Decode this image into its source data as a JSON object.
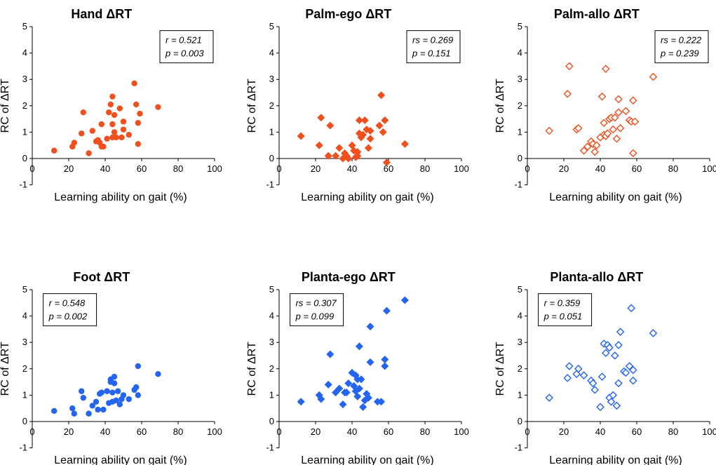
{
  "figure": {
    "xlabel": "Learning ability on gait (%)",
    "ylabel": "RC of ΔRT",
    "x_ticks": [
      0,
      20,
      40,
      60,
      80,
      100
    ],
    "y_ticks": [
      -1,
      0,
      1,
      2,
      3,
      4,
      5
    ]
  },
  "chart_data": [
    {
      "type": "scatter",
      "title": "Hand ΔRT",
      "color": "#f0501e",
      "marker": "circle",
      "stat_r": "r = 0.521",
      "stat_p": "p = 0.003",
      "stat_place": "top-right",
      "xlim": [
        0,
        100
      ],
      "ylim": [
        -1,
        5
      ],
      "points": [
        [
          12,
          0.3
        ],
        [
          22,
          0.45
        ],
        [
          23,
          0.6
        ],
        [
          27,
          0.95
        ],
        [
          28,
          1.75
        ],
        [
          31,
          0.2
        ],
        [
          33,
          1.05
        ],
        [
          35,
          0.65
        ],
        [
          36,
          0.7
        ],
        [
          37,
          0.6
        ],
        [
          38,
          0.45
        ],
        [
          38,
          1.3
        ],
        [
          39,
          0.45
        ],
        [
          41,
          0.75
        ],
        [
          42,
          1.75
        ],
        [
          43,
          2.05
        ],
        [
          44,
          2.35
        ],
        [
          44,
          0.8
        ],
        [
          44,
          1.3
        ],
        [
          45,
          1.65
        ],
        [
          45,
          1.0
        ],
        [
          46,
          0.8
        ],
        [
          48,
          1.9
        ],
        [
          49,
          0.8
        ],
        [
          50,
          1.4
        ],
        [
          50,
          1.1
        ],
        [
          53,
          0.9
        ],
        [
          56,
          2.85
        ],
        [
          57,
          2.05
        ],
        [
          58,
          1.35
        ],
        [
          58,
          0.55
        ],
        [
          59,
          1.7
        ],
        [
          69,
          1.95
        ]
      ]
    },
    {
      "type": "scatter",
      "title": "Palm-ego ΔRT",
      "color": "#f0501e",
      "marker": "diamond",
      "stat_r": "rs = 0.269",
      "stat_p": "p = 0.151",
      "stat_place": "top-right",
      "xlim": [
        0,
        100
      ],
      "ylim": [
        -1,
        5
      ],
      "points": [
        [
          12,
          0.85
        ],
        [
          22,
          0.5
        ],
        [
          23,
          1.55
        ],
        [
          27,
          0.1
        ],
        [
          28,
          1.25
        ],
        [
          31,
          0.1
        ],
        [
          33,
          0.4
        ],
        [
          35,
          0.0
        ],
        [
          36,
          0.2
        ],
        [
          37,
          0.1
        ],
        [
          38,
          0.0
        ],
        [
          40,
          0.5
        ],
        [
          41,
          0.3
        ],
        [
          42,
          0.05
        ],
        [
          43,
          0.1
        ],
        [
          43,
          0.25
        ],
        [
          44,
          1.45
        ],
        [
          44,
          0.95
        ],
        [
          45,
          0.8
        ],
        [
          46,
          0.9
        ],
        [
          47,
          1.45
        ],
        [
          48,
          1.1
        ],
        [
          49,
          0.4
        ],
        [
          50,
          0.75
        ],
        [
          50,
          1.05
        ],
        [
          55,
          1.25
        ],
        [
          56,
          2.4
        ],
        [
          57,
          1.0
        ],
        [
          58,
          1.45
        ],
        [
          59,
          -0.15
        ],
        [
          69,
          0.55
        ]
      ]
    },
    {
      "type": "scatter",
      "title": "Palm-allo ΔRT",
      "color": "#f0501e",
      "marker": "diamond-open",
      "stat_r": "rs = 0.222",
      "stat_p": "p = 0.239",
      "stat_place": "top-right",
      "xlim": [
        0,
        100
      ],
      "ylim": [
        -1,
        5
      ],
      "points": [
        [
          12,
          1.05
        ],
        [
          22,
          2.45
        ],
        [
          23,
          3.5
        ],
        [
          27,
          1.1
        ],
        [
          28,
          1.15
        ],
        [
          31,
          0.3
        ],
        [
          33,
          0.45
        ],
        [
          35,
          0.65
        ],
        [
          36,
          0.55
        ],
        [
          37,
          0.25
        ],
        [
          38,
          0.5
        ],
        [
          40,
          0.8
        ],
        [
          41,
          2.35
        ],
        [
          42,
          1.35
        ],
        [
          42,
          0.9
        ],
        [
          43,
          3.4
        ],
        [
          43,
          0.85
        ],
        [
          44,
          0.95
        ],
        [
          45,
          1.5
        ],
        [
          46,
          1.55
        ],
        [
          47,
          1.1
        ],
        [
          48,
          1.55
        ],
        [
          49,
          0.75
        ],
        [
          50,
          2.25
        ],
        [
          50,
          1.75
        ],
        [
          51,
          1.15
        ],
        [
          54,
          1.8
        ],
        [
          56,
          1.45
        ],
        [
          57,
          1.4
        ],
        [
          58,
          2.2
        ],
        [
          58,
          0.2
        ],
        [
          59,
          1.4
        ],
        [
          69,
          3.1
        ]
      ]
    },
    {
      "type": "scatter",
      "title": "Foot ΔRT",
      "color": "#2364f0",
      "marker": "circle",
      "stat_r": "r = 0.548",
      "stat_p": "p = 0.002",
      "stat_place": "top-left",
      "xlim": [
        0,
        100
      ],
      "ylim": [
        -1,
        5
      ],
      "points": [
        [
          12,
          0.4
        ],
        [
          22,
          0.5
        ],
        [
          23,
          0.3
        ],
        [
          27,
          1.15
        ],
        [
          28,
          0.9
        ],
        [
          31,
          0.3
        ],
        [
          33,
          0.6
        ],
        [
          35,
          0.75
        ],
        [
          36,
          0.45
        ],
        [
          37,
          1.05
        ],
        [
          38,
          1.1
        ],
        [
          39,
          0.45
        ],
        [
          41,
          1.15
        ],
        [
          42,
          0.7
        ],
        [
          43,
          1.5
        ],
        [
          43,
          1.6
        ],
        [
          44,
          0.75
        ],
        [
          44,
          1.1
        ],
        [
          45,
          1.45
        ],
        [
          45,
          1.7
        ],
        [
          46,
          0.8
        ],
        [
          47,
          1.15
        ],
        [
          48,
          0.65
        ],
        [
          49,
          0.85
        ],
        [
          50,
          1.0
        ],
        [
          53,
          0.85
        ],
        [
          56,
          1.2
        ],
        [
          57,
          1.3
        ],
        [
          58,
          1.0
        ],
        [
          58,
          2.1
        ],
        [
          69,
          1.8
        ]
      ]
    },
    {
      "type": "scatter",
      "title": "Planta-ego ΔRT",
      "color": "#2364f0",
      "marker": "diamond",
      "stat_r": "rs = 0.307",
      "stat_p": "p = 0.099",
      "stat_place": "top-left",
      "xlim": [
        0,
        100
      ],
      "ylim": [
        -1,
        5
      ],
      "points": [
        [
          12,
          0.75
        ],
        [
          22,
          1.0
        ],
        [
          23,
          0.85
        ],
        [
          27,
          1.4
        ],
        [
          28,
          2.55
        ],
        [
          31,
          1.1
        ],
        [
          33,
          1.25
        ],
        [
          35,
          0.65
        ],
        [
          36,
          1.1
        ],
        [
          37,
          1.1
        ],
        [
          38,
          1.45
        ],
        [
          40,
          1.85
        ],
        [
          41,
          1.35
        ],
        [
          42,
          1.75
        ],
        [
          42,
          1.15
        ],
        [
          43,
          1.6
        ],
        [
          43,
          0.95
        ],
        [
          44,
          2.85
        ],
        [
          44,
          1.25
        ],
        [
          45,
          1.6
        ],
        [
          46,
          0.55
        ],
        [
          47,
          0.8
        ],
        [
          48,
          1.05
        ],
        [
          49,
          0.9
        ],
        [
          50,
          3.6
        ],
        [
          50,
          2.25
        ],
        [
          54,
          0.75
        ],
        [
          56,
          0.75
        ],
        [
          58,
          2.1
        ],
        [
          58,
          2.35
        ],
        [
          59,
          4.2
        ],
        [
          69,
          4.6
        ]
      ]
    },
    {
      "type": "scatter",
      "title": "Planta-allo ΔRT",
      "color": "#2364f0",
      "marker": "diamond-open",
      "stat_r": "r = 0.359",
      "stat_p": "p = 0.051",
      "stat_place": "top-left",
      "xlim": [
        0,
        100
      ],
      "ylim": [
        -1,
        5
      ],
      "points": [
        [
          12,
          0.9
        ],
        [
          22,
          1.65
        ],
        [
          23,
          2.1
        ],
        [
          27,
          1.8
        ],
        [
          28,
          2.0
        ],
        [
          31,
          1.75
        ],
        [
          35,
          1.55
        ],
        [
          36,
          1.45
        ],
        [
          37,
          1.2
        ],
        [
          40,
          0.55
        ],
        [
          41,
          1.7
        ],
        [
          42,
          2.95
        ],
        [
          43,
          2.6
        ],
        [
          44,
          2.9
        ],
        [
          45,
          2.8
        ],
        [
          45,
          0.9
        ],
        [
          46,
          0.75
        ],
        [
          47,
          1.0
        ],
        [
          48,
          2.5
        ],
        [
          49,
          0.6
        ],
        [
          50,
          2.9
        ],
        [
          50,
          1.45
        ],
        [
          51,
          3.4
        ],
        [
          53,
          1.9
        ],
        [
          54,
          1.85
        ],
        [
          56,
          2.1
        ],
        [
          57,
          4.3
        ],
        [
          58,
          1.95
        ],
        [
          58,
          1.55
        ],
        [
          69,
          3.35
        ]
      ]
    }
  ]
}
